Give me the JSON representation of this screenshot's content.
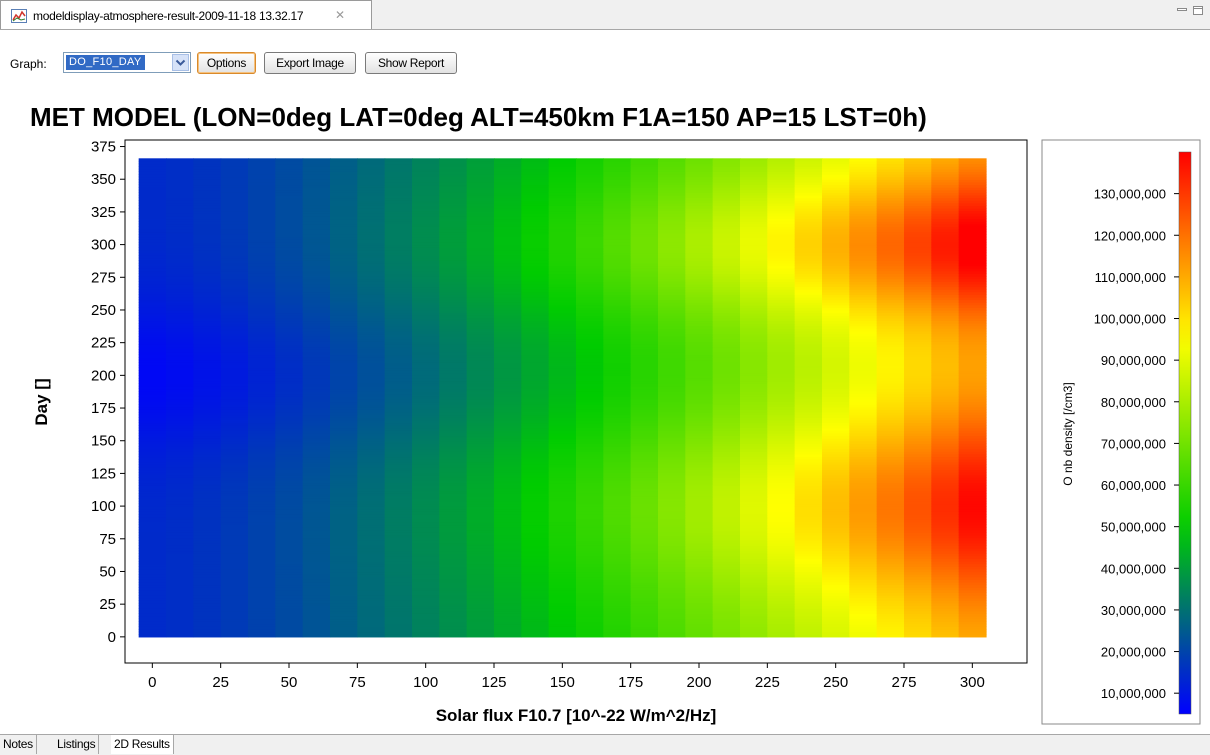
{
  "window": {
    "tab_title": "modeldisplay-atmosphere-result-2009-11-18 13.32.17"
  },
  "toolbar": {
    "graph_label": "Graph:",
    "graph_selected": "DO_F10_DAY",
    "options_label": "Options",
    "export_label": "Export Image",
    "report_label": "Show Report"
  },
  "bottom_tabs": [
    "Notes",
    "Listings",
    "2D Results"
  ],
  "chart_data": {
    "type": "heatmap",
    "title": "MET MODEL (LON=0deg LAT=0deg ALT=450km F1A=150 AP=15 LST=0h)",
    "xlabel": "Solar flux F10.7 [10^-22 W/m^2/Hz]",
    "ylabel": "Day []",
    "colorbar_label": "O nb density [/cm3]",
    "x_ticks": [
      0,
      25,
      50,
      75,
      100,
      125,
      150,
      175,
      200,
      225,
      250,
      275,
      300
    ],
    "y_ticks": [
      0,
      25,
      50,
      75,
      100,
      125,
      150,
      175,
      200,
      225,
      250,
      275,
      300,
      325,
      350,
      375
    ],
    "colorbar_ticks": [
      "10,000,000",
      "20,000,000",
      "30,000,000",
      "40,000,000",
      "50,000,000",
      "60,000,000",
      "70,000,000",
      "80,000,000",
      "90,000,000",
      "100,000,000",
      "110,000,000",
      "120,000,000",
      "130,000,000"
    ],
    "xlim": [
      -10,
      320
    ],
    "ylim": [
      -20,
      380
    ],
    "x_range": [
      -5,
      305
    ],
    "y_range": [
      0,
      366
    ],
    "colorbar_range": [
      5000000,
      140000000
    ],
    "colormap": [
      "#0000ff",
      "#00cc00",
      "#ffff00",
      "#ff0000"
    ],
    "density_model": {
      "x_cells": [
        0,
        10,
        20,
        30,
        40,
        50,
        60,
        70,
        80,
        90,
        100,
        110,
        120,
        130,
        140,
        150,
        160,
        170,
        180,
        190,
        200,
        210,
        220,
        230,
        240,
        250,
        260,
        270,
        280,
        290,
        300
      ],
      "semiannual_days": [
        100,
        300
      ],
      "min_density": 8000000,
      "max_density": 136000000
    }
  }
}
